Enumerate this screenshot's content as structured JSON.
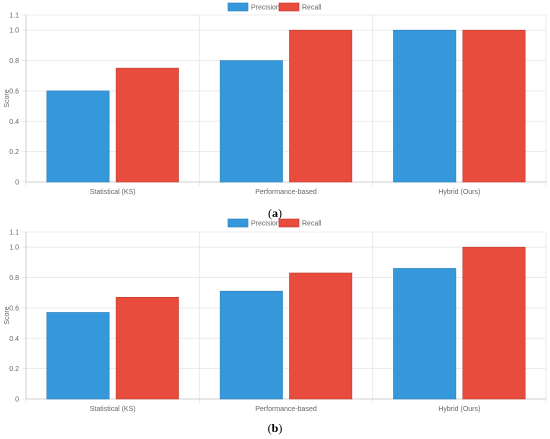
{
  "chart_data": [
    {
      "type": "bar",
      "categories": [
        "Statistical (KS)",
        "Performance-based",
        "Hybrid (Ours)"
      ],
      "series": [
        {
          "name": "Precision",
          "values": [
            0.6,
            0.8,
            1.0
          ],
          "color": "#3498db"
        },
        {
          "name": "Recall",
          "values": [
            0.75,
            1.0,
            1.0
          ],
          "color": "#e74c3c"
        }
      ],
      "ylabel": "Score",
      "ylim": [
        0,
        1.1
      ],
      "yticks": [
        "0",
        "0.2",
        "0.4",
        "0.6",
        "0.8",
        "1.0",
        "1.1"
      ],
      "ytick_values": [
        0,
        0.2,
        0.4,
        0.6,
        0.8,
        1.0,
        1.1
      ],
      "legend_position": "top-center",
      "grid": true,
      "caption": "a"
    },
    {
      "type": "bar",
      "categories": [
        "Statistical (KS)",
        "Performance-based",
        "Hybrid (Ours)"
      ],
      "series": [
        {
          "name": "Precision",
          "values": [
            0.57,
            0.71,
            0.86
          ],
          "color": "#3498db"
        },
        {
          "name": "Recall",
          "values": [
            0.67,
            0.83,
            1.0
          ],
          "color": "#e74c3c"
        }
      ],
      "ylabel": "Score",
      "ylim": [
        0,
        1.1
      ],
      "yticks": [
        "0",
        "0.2",
        "0.4",
        "0.6",
        "0.8",
        "1.0",
        "1.1"
      ],
      "ytick_values": [
        0,
        0.2,
        0.4,
        0.6,
        0.8,
        1.0,
        1.1
      ],
      "legend_position": "top-center",
      "grid": true,
      "caption": "b"
    }
  ]
}
